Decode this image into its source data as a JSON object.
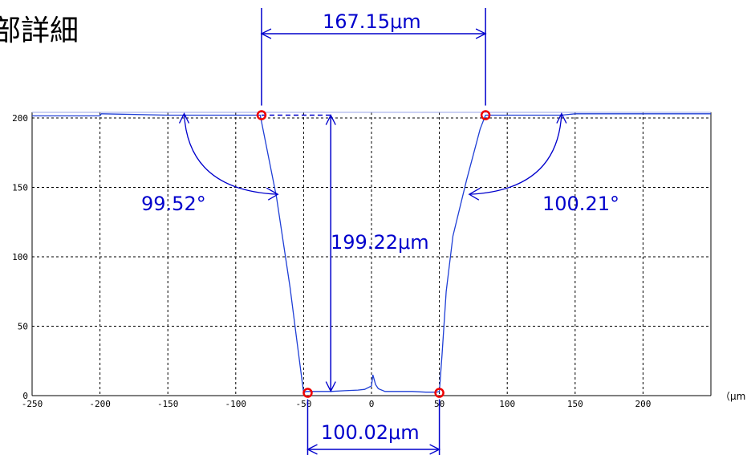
{
  "page": {
    "title_fragment": "部詳細"
  },
  "colors": {
    "profile": "#1f3fd6",
    "dimension": "#0000cc",
    "marker": "#ee0000",
    "grid": "#000000"
  },
  "chart_data": {
    "type": "line",
    "title": "部詳細",
    "xlabel": "（μm",
    "ylabel": "",
    "xlim": [
      -250,
      250
    ],
    "ylim": [
      0,
      200
    ],
    "x_ticks": [
      -250,
      -200,
      -150,
      -100,
      -50,
      0,
      50,
      100,
      150,
      200
    ],
    "y_ticks": [
      0,
      50,
      100,
      150,
      200
    ],
    "grid": true,
    "series": [
      {
        "x": [
          -250,
          -200,
          -199,
          -150,
          -120,
          -100,
          -82,
          -70,
          -60,
          -55,
          -50,
          -48,
          -40,
          -30,
          -20,
          -10,
          -5,
          0,
          1,
          3,
          5,
          10,
          20,
          30,
          40,
          48,
          50,
          52,
          55,
          60,
          70,
          80,
          84,
          100,
          140,
          150,
          200,
          250
        ],
        "y": [
          201.5,
          201.5,
          203,
          202,
          202,
          202,
          202,
          143,
          78,
          40,
          2,
          3,
          3,
          3,
          3.5,
          4,
          4.5,
          7,
          15,
          8,
          5,
          3,
          3,
          3,
          2.5,
          2.5,
          3,
          30,
          75,
          115,
          155,
          192,
          202,
          202,
          202,
          203,
          203,
          203
        ]
      }
    ],
    "markers": [
      {
        "x": -81,
        "y": 202
      },
      {
        "x": -47,
        "y": 2
      },
      {
        "x": 50,
        "y": 2
      },
      {
        "x": 84,
        "y": 202
      }
    ],
    "annotations": {
      "top_width": "167.15μm",
      "bottom_width": "100.02μm",
      "depth": "199.22μm",
      "left_angle": "99.52°",
      "right_angle": "100.21°"
    }
  }
}
